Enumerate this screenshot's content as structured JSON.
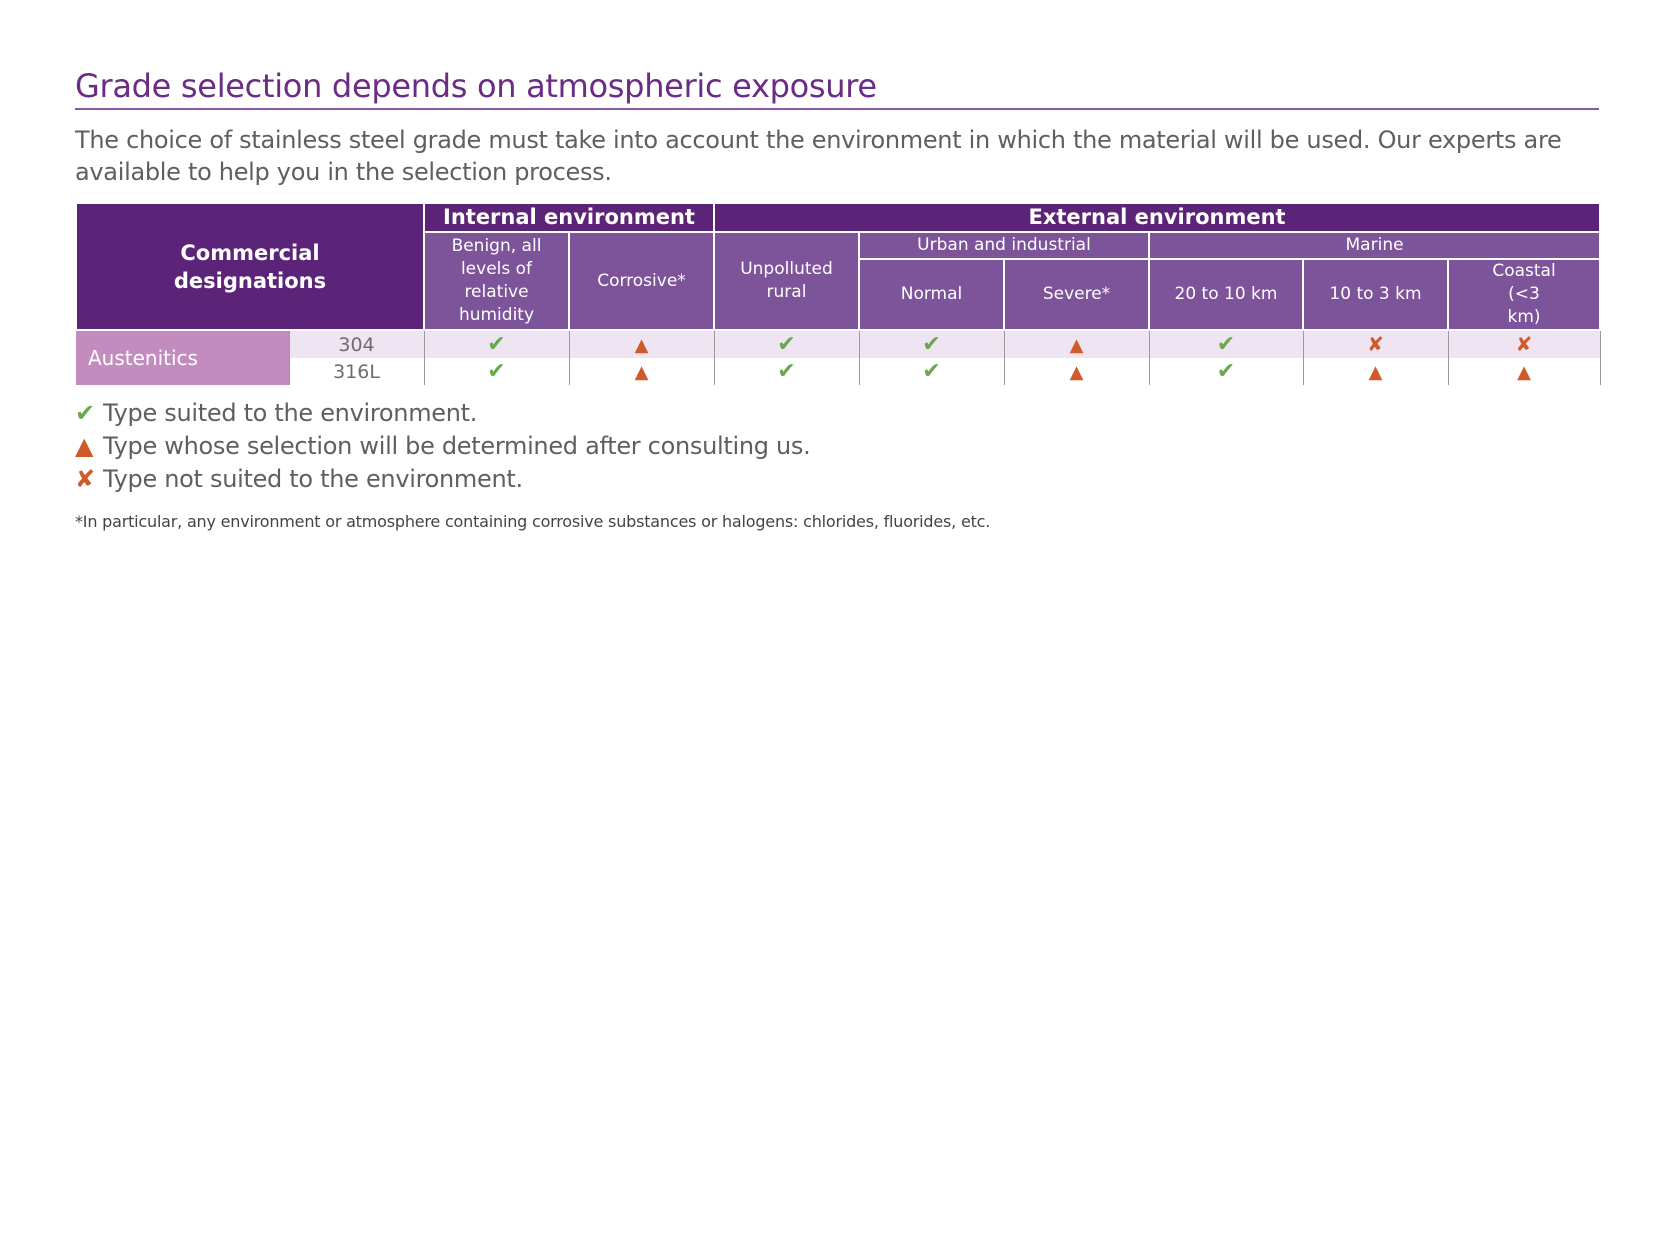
{
  "title": "Grade selection depends on atmospheric exposure",
  "intro": "The choice of stainless steel grade must take into account the environment in which the material will be used. Our experts are available to help you in the selection process.",
  "table": {
    "commercial_header": "Commercial designations",
    "internal_header": "Internal environment",
    "external_header": "External environment",
    "internal_cols": [
      "Benign, all levels of relative humidity",
      "Corrosive*"
    ],
    "unpolluted": "Unpolluted rural",
    "urban_group": "Urban and industrial",
    "urban_cols": [
      "Normal",
      "Severe*"
    ],
    "marine_group": "Marine",
    "marine_cols": [
      "20 to 10 km",
      "10 to 3 km",
      "Coastal (<3 km)"
    ],
    "family": "Austenitics",
    "rows": [
      {
        "grade": "304",
        "cells": [
          "check",
          "triangle",
          "check",
          "check",
          "triangle",
          "check",
          "cross",
          "cross"
        ]
      },
      {
        "grade": "316L",
        "cells": [
          "check",
          "triangle",
          "check",
          "check",
          "triangle",
          "check",
          "triangle",
          "triangle"
        ]
      }
    ]
  },
  "symbols": {
    "check": "✔",
    "triangle": "▲",
    "cross": "✘"
  },
  "legend": [
    {
      "symbol": "✔",
      "text": "Type suited to the environment."
    },
    {
      "symbol": "▲",
      "text": "Type whose selection will be determined after consulting us."
    },
    {
      "symbol": "✘",
      "text": "Type not suited to the environment."
    }
  ],
  "footnote": "*In particular, any environment or atmosphere containing corrosive substances or halogens: chlorides, fluorides, etc.",
  "colors": {
    "purple_dark": "#5c2478",
    "purple_mid": "#7d539a",
    "family_pink": "#c28cbf",
    "row_tint": "#efe5f2",
    "check_green": "#6aa84f",
    "warn_orange": "#d05a2a"
  }
}
